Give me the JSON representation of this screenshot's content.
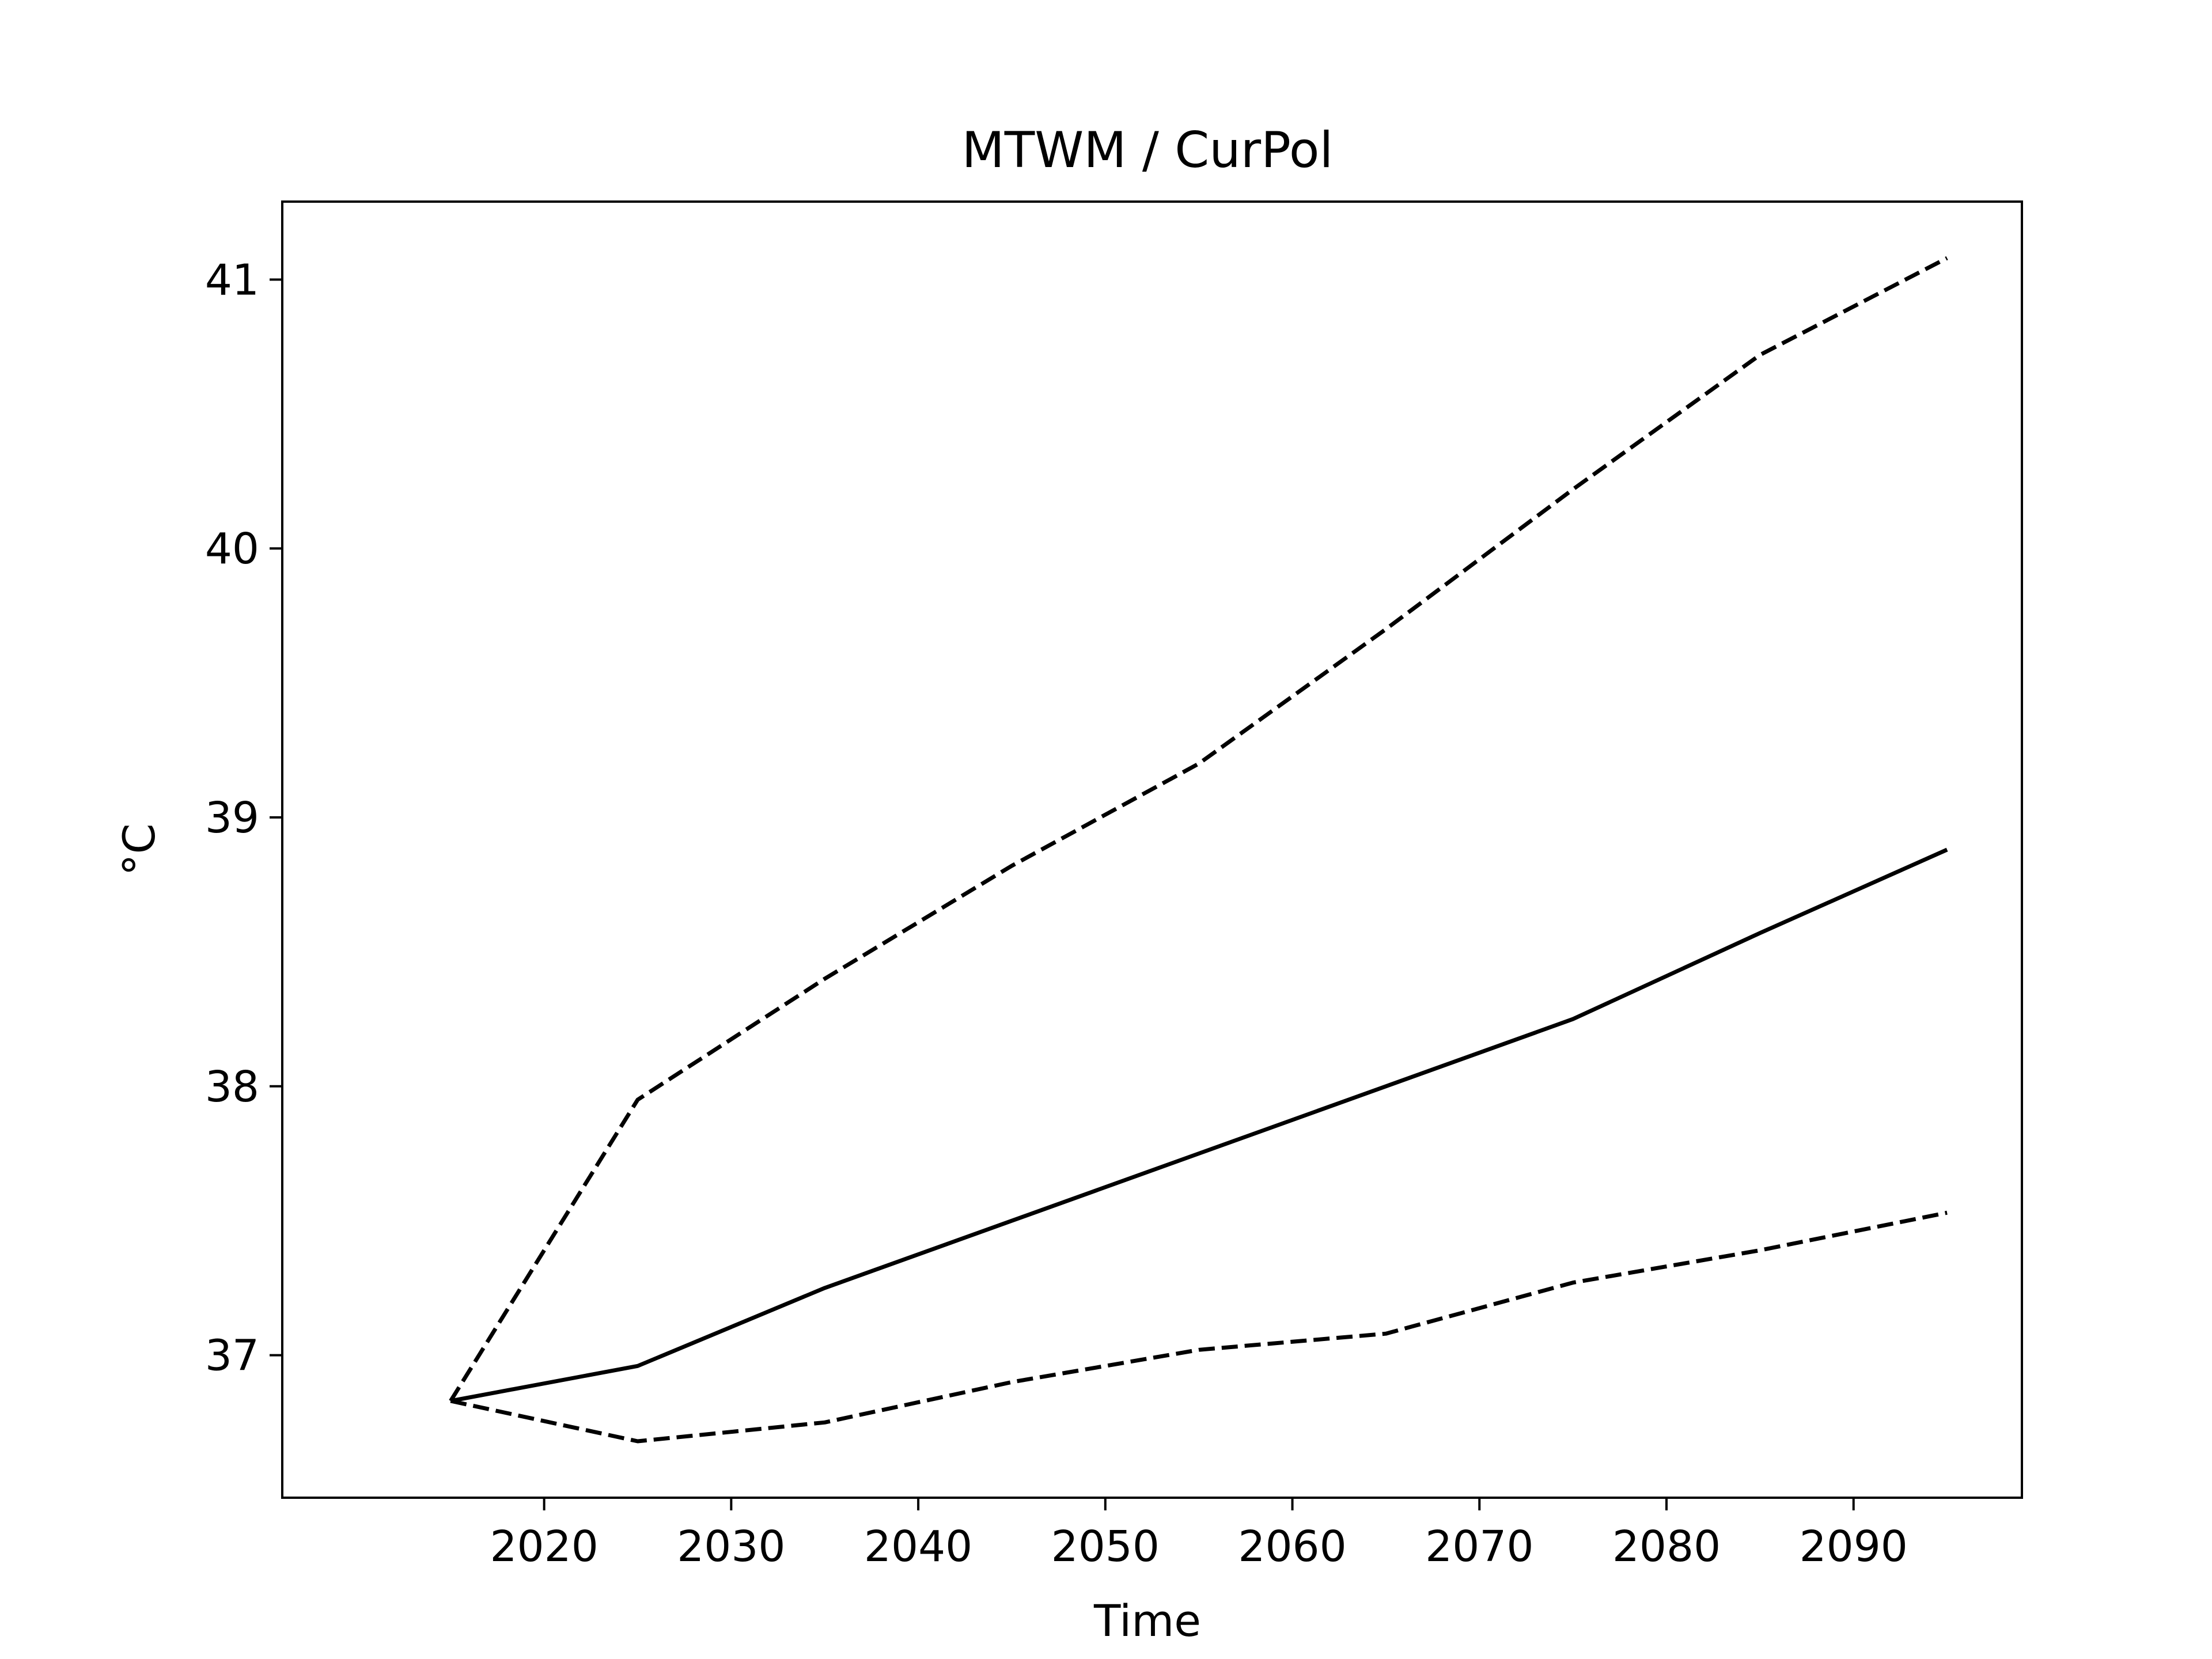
{
  "chart_data": {
    "type": "line",
    "title": "MTWM / CurPol",
    "xlabel": "Time",
    "ylabel": "°C",
    "x": [
      2015,
      2025,
      2035,
      2045,
      2055,
      2065,
      2075,
      2085,
      2095
    ],
    "xlim": [
      2006,
      2099
    ],
    "ylim": [
      36.47,
      41.29
    ],
    "xticks": [
      2020,
      2030,
      2040,
      2050,
      2060,
      2070,
      2080,
      2090
    ],
    "yticks": [
      37,
      38,
      39,
      40,
      41
    ],
    "grid": false,
    "legend": "none",
    "series": [
      {
        "style": "solid",
        "color": "#000000",
        "values": [
          36.83,
          36.96,
          37.25,
          37.5,
          37.75,
          38.0,
          38.25,
          38.57,
          38.88
        ]
      },
      {
        "style": "dashed",
        "color": "#000000",
        "values": [
          36.83,
          37.95,
          38.4,
          38.82,
          39.2,
          39.7,
          40.22,
          40.72,
          41.08
        ]
      },
      {
        "style": "dashed",
        "color": "#000000",
        "values": [
          36.83,
          36.68,
          36.75,
          36.9,
          37.02,
          37.08,
          37.27,
          37.39,
          37.53
        ]
      }
    ]
  }
}
